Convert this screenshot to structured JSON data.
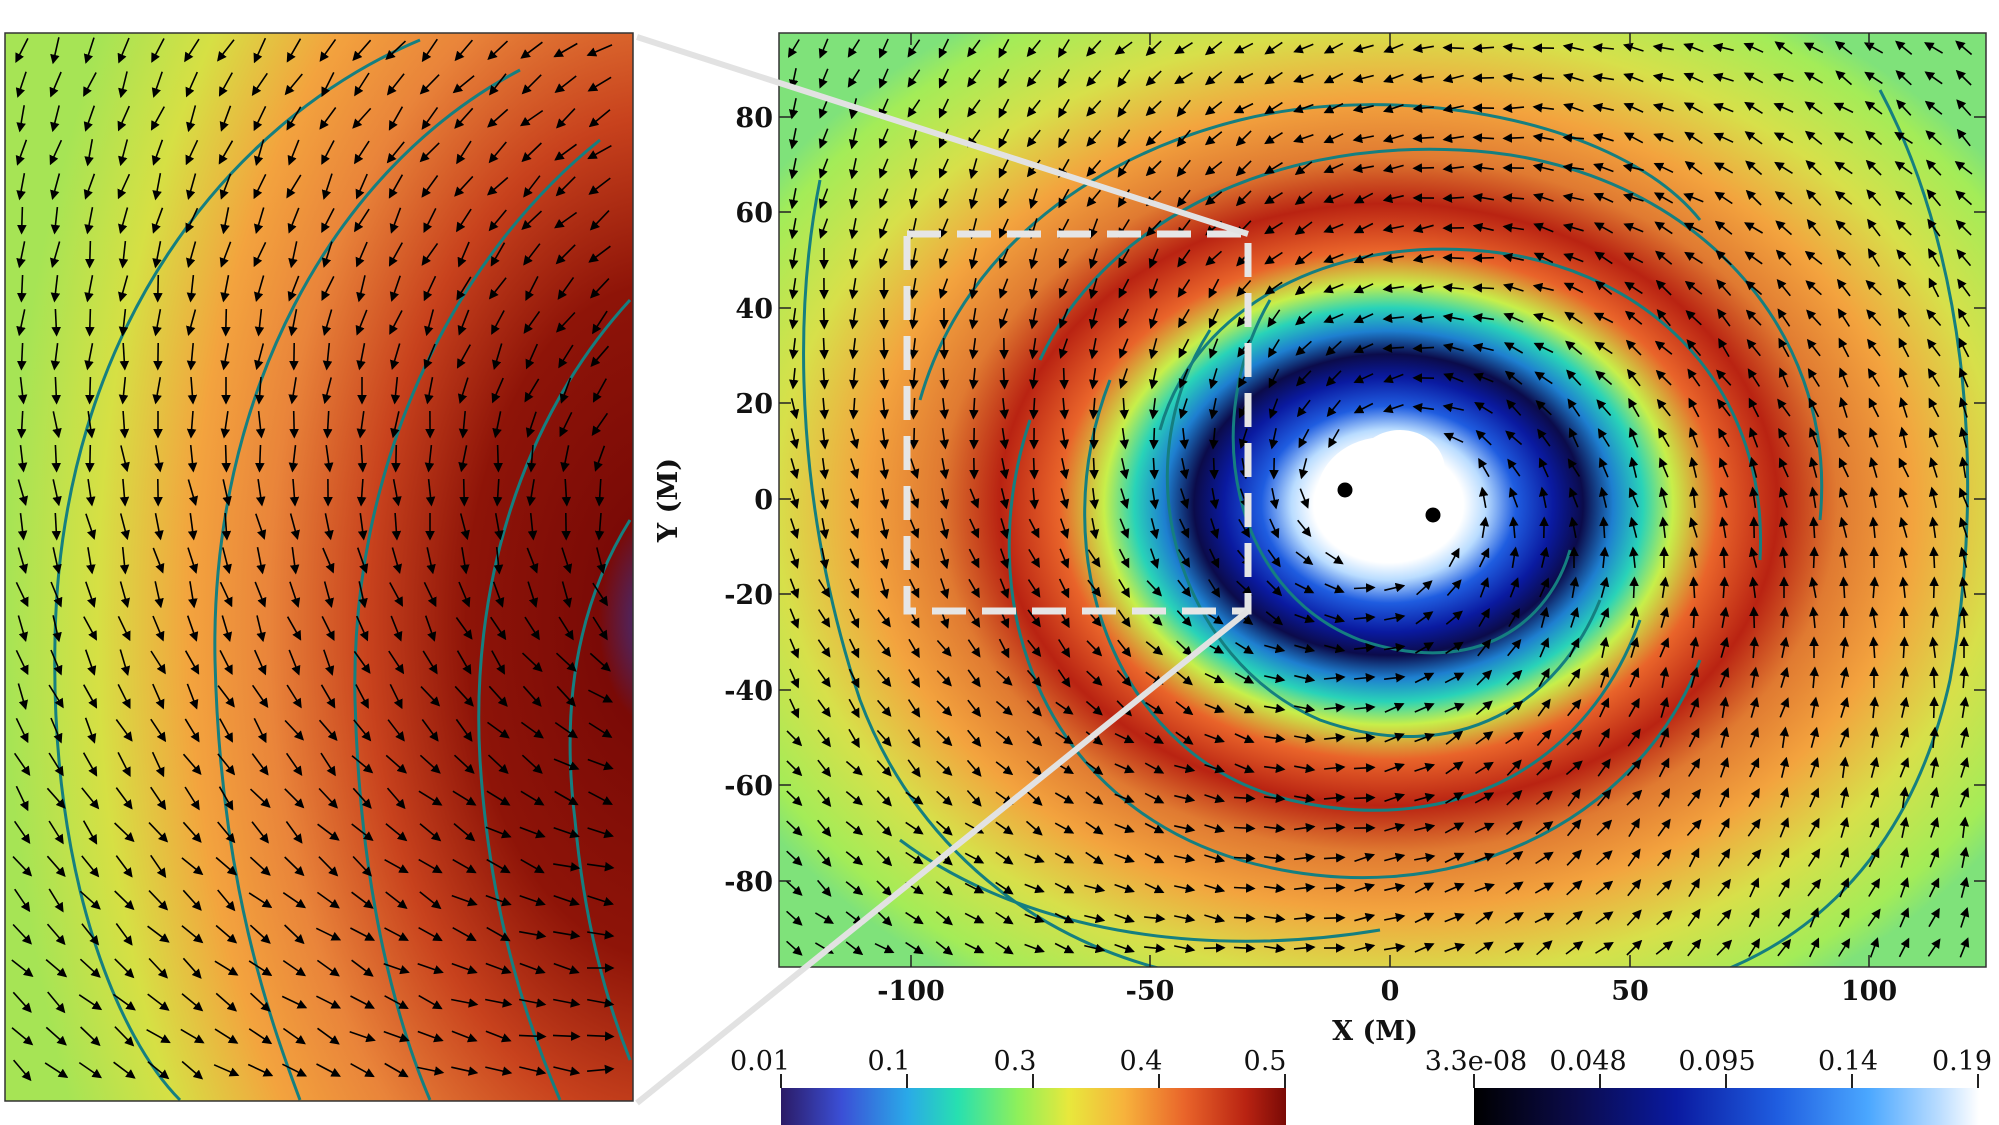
{
  "main_plot": {
    "x_label": "X (M)",
    "y_label": "Y (M)",
    "x_ticks": [
      "-100",
      "-50",
      "0",
      "50",
      "100"
    ],
    "y_ticks": [
      "80",
      "60",
      "40",
      "20",
      "0",
      "-20",
      "-40",
      "-60",
      "-80"
    ]
  },
  "colorbars": {
    "left": {
      "ticks": [
        "0.01",
        "0.1",
        "0.3",
        "0.4",
        "0.5"
      ],
      "stops": [
        "#2b1b66",
        "#3b4fd6",
        "#2aa9e8",
        "#27e0b0",
        "#8ff05a",
        "#e8e83c",
        "#f7b23c",
        "#e9642a",
        "#b92312",
        "#7a0a06"
      ]
    },
    "right": {
      "ticks": [
        "3.3e-08",
        "0.048",
        "0.095",
        "0.14",
        "0.19"
      ],
      "stops": [
        "#000000",
        "#0b0b4a",
        "#0a1aa0",
        "#1f5de0",
        "#4aa7ff",
        "#b9dcff",
        "#ffffff"
      ]
    }
  },
  "colors": {
    "background_field": "#9cec5a",
    "spiral_orange": "#f3a33e",
    "spiral_red": "#c8421d",
    "contour": "#157f80",
    "cavity_blue": "#1f5de0",
    "zoom_box": "#e6e6e6"
  }
}
